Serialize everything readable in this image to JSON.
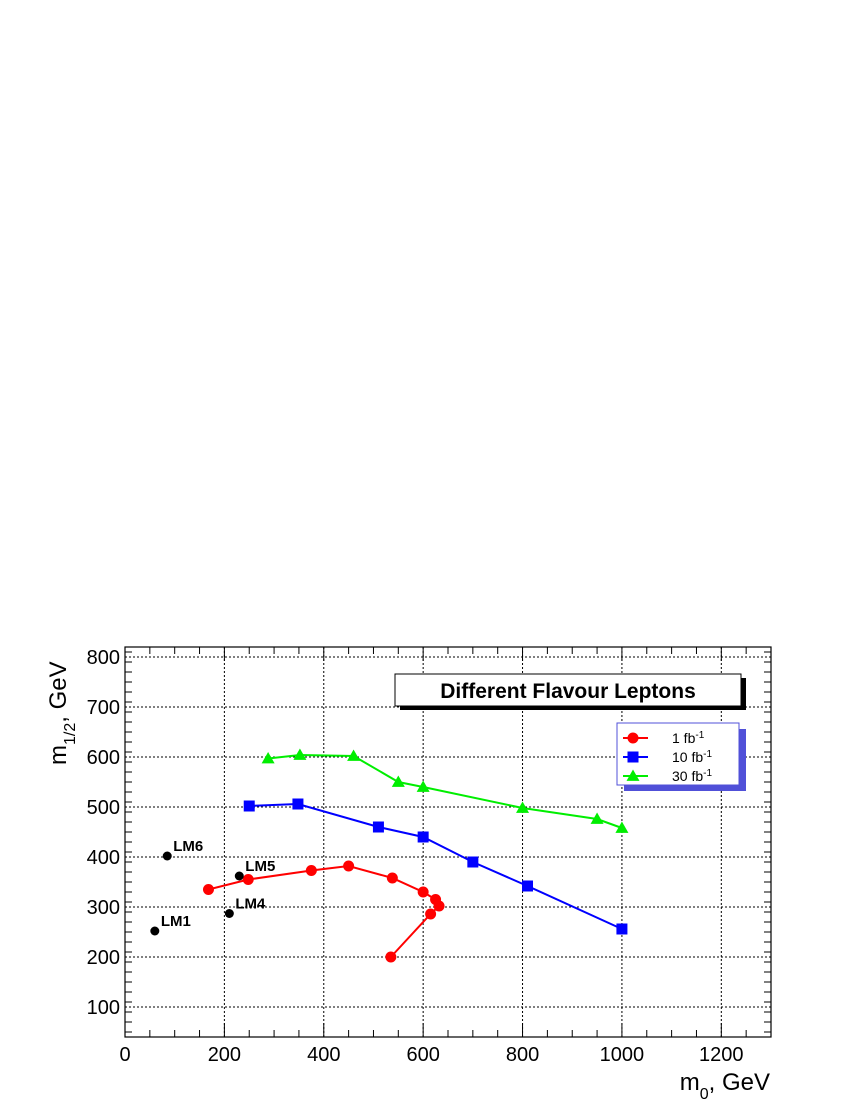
{
  "chart_data": {
    "type": "line",
    "title": "Different Flavour Leptons",
    "xlabel": "m_0, GeV",
    "ylabel": "m_1/2, GeV",
    "xlim": [
      0,
      1300
    ],
    "ylim": [
      40,
      820
    ],
    "x_ticks": [
      0,
      200,
      400,
      600,
      800,
      1000,
      1200
    ],
    "y_ticks": [
      100,
      200,
      300,
      400,
      500,
      600,
      700,
      800
    ],
    "grid": true,
    "legend_position": "top-right",
    "series": [
      {
        "name": "1 fb-1",
        "label_main": "1 fb",
        "label_sup": "-1",
        "color": "#ff0000",
        "marker": "circle",
        "points": [
          [
            168,
            335
          ],
          [
            248,
            355
          ],
          [
            375,
            373
          ],
          [
            450,
            382
          ],
          [
            538,
            358
          ],
          [
            600,
            330
          ],
          [
            625,
            315
          ],
          [
            632,
            302
          ],
          [
            615,
            286
          ],
          [
            535,
            200
          ]
        ]
      },
      {
        "name": "10 fb-1",
        "label_main": "10 fb",
        "label_sup": "-1",
        "color": "#0000ff",
        "marker": "square",
        "points": [
          [
            250,
            502
          ],
          [
            348,
            506
          ],
          [
            510,
            460
          ],
          [
            600,
            440
          ],
          [
            700,
            390
          ],
          [
            810,
            342
          ],
          [
            1000,
            256
          ]
        ]
      },
      {
        "name": "30 fb-1",
        "label_main": "30 fb",
        "label_sup": "-1",
        "color": "#00ee00",
        "marker": "triangle",
        "points": [
          [
            288,
            597
          ],
          [
            352,
            604
          ],
          [
            460,
            602
          ],
          [
            550,
            550
          ],
          [
            600,
            540
          ],
          [
            800,
            498
          ],
          [
            950,
            476
          ],
          [
            1000,
            458
          ]
        ]
      }
    ],
    "benchmarks": [
      {
        "label": "LM1",
        "x": 60,
        "y": 252
      },
      {
        "label": "LM4",
        "x": 210,
        "y": 287
      },
      {
        "label": "LM5",
        "x": 230,
        "y": 362
      },
      {
        "label": "LM6",
        "x": 85,
        "y": 402
      }
    ]
  }
}
